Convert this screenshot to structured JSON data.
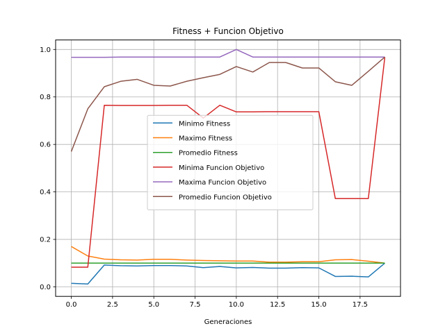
{
  "chart_data": {
    "type": "line",
    "title": "Fitness + Funcion Objetivo",
    "xlabel": "Generaciones",
    "ylabel": "",
    "xlim": [
      -0.95,
      19.95
    ],
    "ylim": [
      -0.04,
      1.04
    ],
    "xticks": [
      0.0,
      2.5,
      5.0,
      7.5,
      10.0,
      12.5,
      15.0,
      17.5
    ],
    "xtick_labels": [
      "0.0",
      "2.5",
      "5.0",
      "7.5",
      "10.0",
      "12.5",
      "15.0",
      "17.5"
    ],
    "yticks": [
      0.0,
      0.2,
      0.4,
      0.6,
      0.8,
      1.0
    ],
    "ytick_labels": [
      "0.0",
      "0.2",
      "0.4",
      "0.6",
      "0.8",
      "1.0"
    ],
    "grid": true,
    "legend_position": "center",
    "x": [
      0,
      1,
      2,
      3,
      4,
      5,
      6,
      7,
      8,
      9,
      10,
      11,
      12,
      13,
      14,
      15,
      16,
      17,
      18,
      19
    ],
    "series": [
      {
        "name": "Minimo Fitness",
        "color": "#1f77b4",
        "values": [
          0.015,
          0.012,
          0.092,
          0.089,
          0.088,
          0.09,
          0.09,
          0.088,
          0.081,
          0.086,
          0.08,
          0.082,
          0.079,
          0.079,
          0.081,
          0.08,
          0.044,
          0.045,
          0.042,
          0.1
        ]
      },
      {
        "name": "Maximo Fitness",
        "color": "#ff7f0e",
        "values": [
          0.17,
          0.13,
          0.117,
          0.114,
          0.113,
          0.116,
          0.116,
          0.113,
          0.111,
          0.11,
          0.109,
          0.109,
          0.104,
          0.104,
          0.106,
          0.106,
          0.114,
          0.115,
          0.108,
          0.1
        ]
      },
      {
        "name": "Promedio Fitness",
        "color": "#2ca02c",
        "values": [
          0.1,
          0.1,
          0.1,
          0.1,
          0.1,
          0.1,
          0.1,
          0.1,
          0.1,
          0.1,
          0.1,
          0.1,
          0.1,
          0.1,
          0.1,
          0.1,
          0.1,
          0.1,
          0.1,
          0.1
        ]
      },
      {
        "name": "Minima Funcion Objetivo",
        "color": "#d62728",
        "values": [
          0.083,
          0.083,
          0.765,
          0.764,
          0.764,
          0.764,
          0.765,
          0.765,
          0.711,
          0.765,
          0.737,
          0.737,
          0.738,
          0.738,
          0.738,
          0.738,
          0.372,
          0.372,
          0.372,
          0.967
        ]
      },
      {
        "name": "Maxima Funcion Objetivo",
        "color": "#9467bd",
        "values": [
          0.967,
          0.967,
          0.967,
          0.968,
          0.968,
          0.968,
          0.968,
          0.968,
          0.968,
          0.968,
          1.0,
          0.968,
          0.968,
          0.968,
          0.968,
          0.968,
          0.968,
          0.968,
          0.968,
          0.968
        ]
      },
      {
        "name": "Promedio Funcion Objetivo",
        "color": "#8c564b",
        "values": [
          0.57,
          0.75,
          0.843,
          0.866,
          0.874,
          0.849,
          0.846,
          0.866,
          0.881,
          0.895,
          0.928,
          0.905,
          0.945,
          0.945,
          0.922,
          0.922,
          0.864,
          0.849,
          0.908,
          0.968
        ]
      }
    ]
  }
}
